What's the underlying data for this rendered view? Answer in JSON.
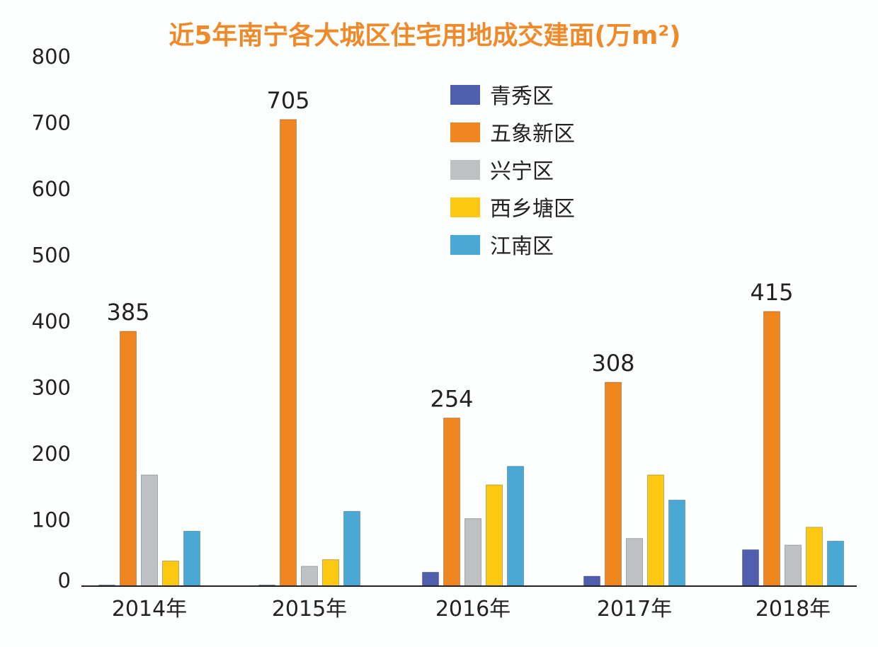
{
  "chart_data": {
    "type": "bar",
    "title": "近5年南宁各大城区住宅用地成交建面(万m²)",
    "xlabel": "",
    "ylabel": "",
    "ylim": [
      0,
      800
    ],
    "yticks": [
      0,
      100,
      200,
      300,
      400,
      500,
      600,
      700,
      800
    ],
    "categories": [
      "2014年",
      "2015年",
      "2016年",
      "2017年",
      "2018年"
    ],
    "series": [
      {
        "name": "青秀区",
        "color": "#4f5fae",
        "values": [
          1,
          1,
          21,
          15,
          55
        ]
      },
      {
        "name": "五象新区",
        "color": "#ef8620",
        "values": [
          385,
          705,
          254,
          308,
          415
        ]
      },
      {
        "name": "兴宁区",
        "color": "#bfc1c4",
        "values": [
          168,
          30,
          102,
          72,
          62
        ]
      },
      {
        "name": "西乡塘区",
        "color": "#fcc812",
        "values": [
          38,
          40,
          153,
          168,
          89
        ]
      },
      {
        "name": "江南区",
        "color": "#4aa8d4",
        "values": [
          83,
          113,
          181,
          130,
          68
        ]
      }
    ],
    "data_labels": {
      "series": "五象新区",
      "labels": [
        "385",
        "705",
        "254",
        "308",
        "415"
      ]
    },
    "legend_position": "top-center",
    "grid": false
  }
}
